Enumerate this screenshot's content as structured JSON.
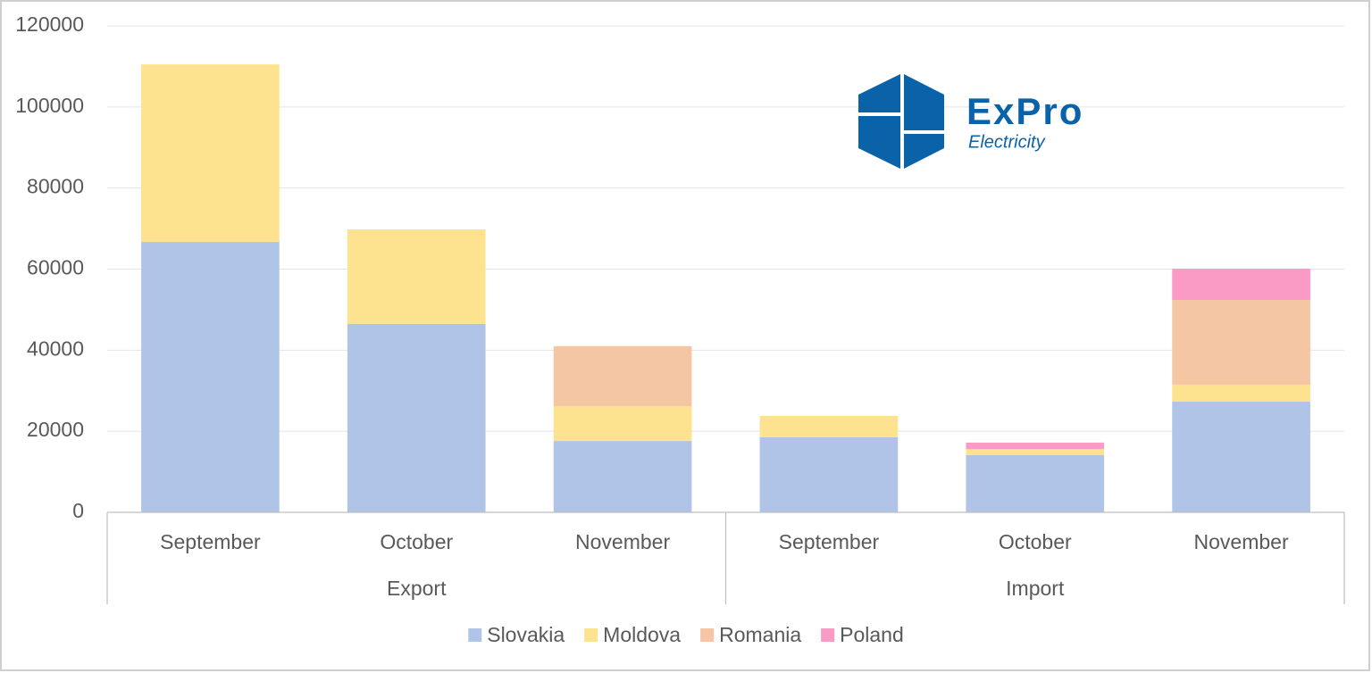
{
  "chart_data": {
    "type": "stacked-bar",
    "logo": {
      "name": "ExPro",
      "tagline": "Electricity"
    },
    "groups": [
      {
        "label": "Export",
        "categories": [
          "September",
          "October",
          "November"
        ]
      },
      {
        "label": "Import",
        "categories": [
          "September",
          "October",
          "November"
        ]
      }
    ],
    "series": [
      {
        "name": "Slovakia",
        "color": "#b0c4e8",
        "values": [
          66700,
          46500,
          17600,
          18500,
          14100,
          27300
        ]
      },
      {
        "name": "Moldova",
        "color": "#fde38f",
        "values": [
          43800,
          23300,
          8600,
          5300,
          1500,
          4200
        ]
      },
      {
        "name": "Romania",
        "color": "#f5c6a3",
        "values": [
          0,
          0,
          14800,
          0,
          0,
          20900
        ]
      },
      {
        "name": "Poland",
        "color": "#f99bc4",
        "values": [
          0,
          0,
          0,
          0,
          1600,
          7700
        ]
      }
    ],
    "ylim": [
      0,
      120000
    ],
    "yticks": [
      0,
      20000,
      40000,
      60000,
      80000,
      100000,
      120000
    ],
    "grid": true
  }
}
